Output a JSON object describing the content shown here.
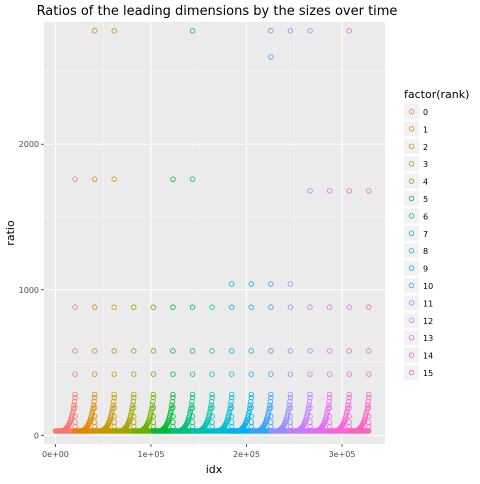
{
  "chart_data": {
    "type": "scatter",
    "title": "Ratios of the leading dimensions by the sizes over time",
    "xlabel": "idx",
    "ylabel": "ratio",
    "xlim": [
      -12000,
      345000
    ],
    "ylim": [
      -60,
      2840
    ],
    "x_ticks": [
      {
        "value": 0,
        "label": "0e+00"
      },
      {
        "value": 100000,
        "label": "1e+05"
      },
      {
        "value": 200000,
        "label": "2e+05"
      },
      {
        "value": 300000,
        "label": "3e+05"
      }
    ],
    "y_ticks": [
      {
        "value": 0,
        "label": "0"
      },
      {
        "value": 1000,
        "label": "1000"
      },
      {
        "value": 2000,
        "label": "2000"
      }
    ],
    "grid": true,
    "marker": "open-circle",
    "legend": {
      "title": "factor(rank)",
      "position": "right",
      "entries": [
        "0",
        "1",
        "2",
        "3",
        "4",
        "5",
        "6",
        "7",
        "8",
        "9",
        "10",
        "11",
        "12",
        "13",
        "14",
        "15"
      ]
    },
    "series": [
      {
        "name": "0",
        "color": "#F8766D",
        "x_start": 0,
        "x_end": 20500,
        "tail_x": [
          20500
        ],
        "tail_y": [
          1760
        ]
      },
      {
        "name": "1",
        "color": "#E58700",
        "x_start": 20500,
        "x_end": 41000,
        "tail_x": [
          41000,
          41000
        ],
        "tail_y": [
          1760,
          2780
        ]
      },
      {
        "name": "2",
        "color": "#C99800",
        "x_start": 41000,
        "x_end": 61500,
        "tail_x": [
          61500,
          61500
        ],
        "tail_y": [
          1760,
          2780
        ]
      },
      {
        "name": "3",
        "color": "#A3A500",
        "x_start": 61500,
        "x_end": 82000,
        "tail_x": [],
        "tail_y": []
      },
      {
        "name": "4",
        "color": "#6BB100",
        "x_start": 82000,
        "x_end": 102500,
        "tail_x": [],
        "tail_y": []
      },
      {
        "name": "5",
        "color": "#00BA38",
        "x_start": 102500,
        "x_end": 123000,
        "tail_x": [
          123000
        ],
        "tail_y": [
          1760
        ]
      },
      {
        "name": "6",
        "color": "#00BF7D",
        "x_start": 123000,
        "x_end": 143500,
        "tail_x": [
          143500,
          143500
        ],
        "tail_y": [
          1760,
          2780
        ]
      },
      {
        "name": "7",
        "color": "#00C0AF",
        "x_start": 143500,
        "x_end": 164000,
        "tail_x": [],
        "tail_y": []
      },
      {
        "name": "8",
        "color": "#00BCD8",
        "x_start": 164000,
        "x_end": 184500,
        "tail_x": [
          184500
        ],
        "tail_y": [
          1040
        ]
      },
      {
        "name": "9",
        "color": "#00B0F6",
        "x_start": 184500,
        "x_end": 205000,
        "tail_x": [
          205000
        ],
        "tail_y": [
          1040
        ]
      },
      {
        "name": "10",
        "color": "#35A2FF",
        "x_start": 205000,
        "x_end": 225500,
        "tail_x": [
          225500,
          225500,
          225500
        ],
        "tail_y": [
          1040,
          2600,
          2780
        ]
      },
      {
        "name": "11",
        "color": "#9590FF",
        "x_start": 225500,
        "x_end": 246000,
        "tail_x": [
          246000,
          246000
        ],
        "tail_y": [
          1040,
          2780
        ]
      },
      {
        "name": "12",
        "color": "#C77CFF",
        "x_start": 246000,
        "x_end": 266500,
        "tail_x": [
          266500,
          266500
        ],
        "tail_y": [
          1680,
          2780
        ]
      },
      {
        "name": "13",
        "color": "#E76BF3",
        "x_start": 266500,
        "x_end": 287000,
        "tail_x": [
          287000
        ],
        "tail_y": [
          1680
        ]
      },
      {
        "name": "14",
        "color": "#FA62DB",
        "x_start": 287000,
        "x_end": 307500,
        "tail_x": [
          307500,
          307500
        ],
        "tail_y": [
          1680,
          2780
        ]
      },
      {
        "name": "15",
        "color": "#FF62BC",
        "x_start": 307500,
        "x_end": 328000,
        "tail_x": [
          328000
        ],
        "tail_y": [
          1680
        ]
      }
    ],
    "common_levels": [
      60,
      90,
      130,
      190,
      280,
      420,
      580,
      880
    ]
  }
}
